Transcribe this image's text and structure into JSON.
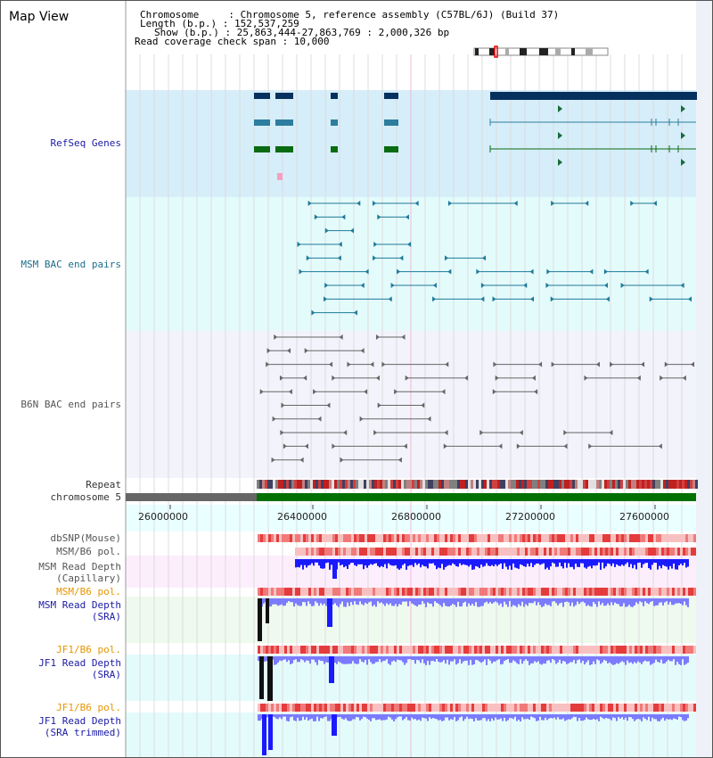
{
  "view_title": "Map View",
  "info": {
    "chromosome": "Chromosome     : Chromosome 5, reference assembly (C57BL/6J) (Build 37)",
    "length": "Length (b.p.) : 152,537,259",
    "show": "Show (b.p.) : 25,863,444-27,863,769 : 2,000,326 bp",
    "span": "Read coverage check span : 10,000"
  },
  "tracks": {
    "refseq": "RefSeq Genes",
    "msm_bac": "MSM BAC end pairs",
    "b6n_bac": "B6N BAC end pairs",
    "repeat": "Repeat",
    "chromosome": "chromosome 5",
    "dbsnp": "dbSNP(Mouse)",
    "msm_b6_pol_1": "MSM/B6 pol.",
    "msm_depth_cap": "MSM Read Depth\n(Capillary)",
    "msm_b6_pol_2": "MSM/B6 pol.",
    "msm_depth_sra": "MSM Read Depth\n(SRA)",
    "jf1_b6_pol_1": "JF1/B6 pol.",
    "jf1_depth_sra": "JF1 Read Depth\n(SRA)",
    "jf1_b6_pol_2": "JF1/B6 pol.",
    "jf1_depth_trim": "JF1 Read Depth\n(SRA trimmed)"
  },
  "axis": {
    "ticks": [
      "26000000",
      "26400000",
      "26800000",
      "27200000",
      "27600000"
    ]
  },
  "colors": {
    "refseq_bg": "#d6eefa",
    "bac_bg": "#e4fbfb",
    "b6n_bg": "#f2f3fb",
    "gene_dark": "#06315f",
    "gene_mid": "#2c7d9e",
    "gene_green": "#0b6b12",
    "chrom_gray": "#666666",
    "chrom_green": "#007000",
    "depth_blue": "#1a1aff",
    "depth_light": "#7b7bff"
  }
}
